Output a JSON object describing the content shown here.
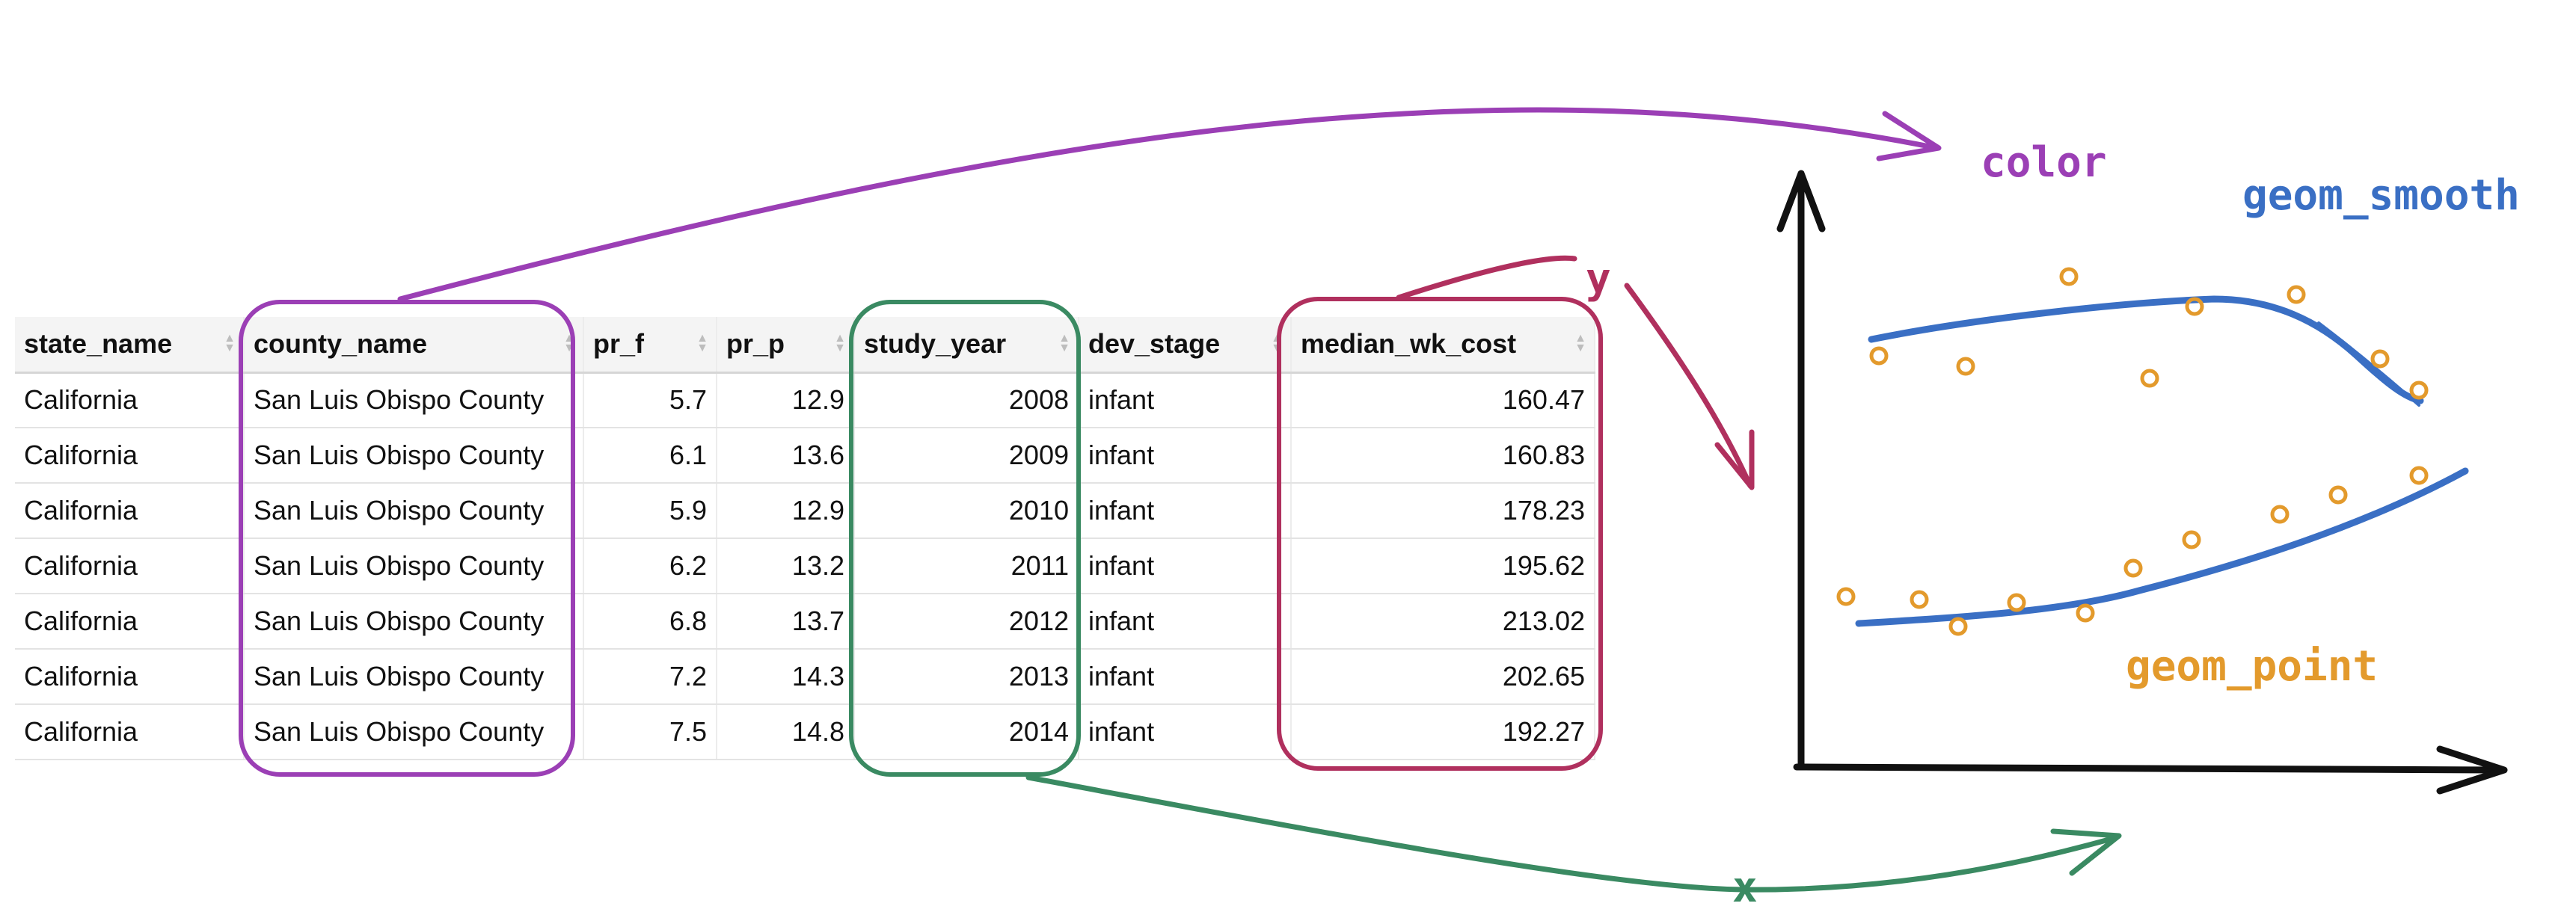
{
  "table": {
    "columns": [
      {
        "key": "state_name",
        "label": "state_name",
        "align": "left"
      },
      {
        "key": "county_name",
        "label": "county_name",
        "align": "left"
      },
      {
        "key": "pr_f",
        "label": "pr_f",
        "align": "right"
      },
      {
        "key": "pr_p",
        "label": "pr_p",
        "align": "right"
      },
      {
        "key": "study_year",
        "label": "study_year",
        "align": "right"
      },
      {
        "key": "dev_stage",
        "label": "dev_stage",
        "align": "left"
      },
      {
        "key": "median_wk_cost",
        "label": "median_wk_cost",
        "align": "right"
      }
    ],
    "rows": [
      [
        "California",
        "San Luis Obispo County",
        "5.7",
        "12.9",
        "2008",
        "infant",
        "160.47"
      ],
      [
        "California",
        "San Luis Obispo County",
        "6.1",
        "13.6",
        "2009",
        "infant",
        "160.83"
      ],
      [
        "California",
        "San Luis Obispo County",
        "5.9",
        "12.9",
        "2010",
        "infant",
        "178.23"
      ],
      [
        "California",
        "San Luis Obispo County",
        "6.2",
        "13.2",
        "2011",
        "infant",
        "195.62"
      ],
      [
        "California",
        "San Luis Obispo County",
        "6.8",
        "13.7",
        "2012",
        "infant",
        "213.02"
      ],
      [
        "California",
        "San Luis Obispo County",
        "7.2",
        "14.3",
        "2013",
        "infant",
        "202.65"
      ],
      [
        "California",
        "San Luis Obispo County",
        "7.5",
        "14.8",
        "2014",
        "infant",
        "192.27"
      ]
    ]
  },
  "annotations": {
    "color_label": "color",
    "y_label": "y",
    "x_label": "x",
    "smooth_label": "geom_smooth",
    "point_label": "geom_point"
  },
  "colors": {
    "purple": "#9b3fb5",
    "green": "#3a8a62",
    "crimson": "#b0305e",
    "blue": "#3a6fc4",
    "orange": "#e39a2c",
    "axis": "#111111"
  }
}
